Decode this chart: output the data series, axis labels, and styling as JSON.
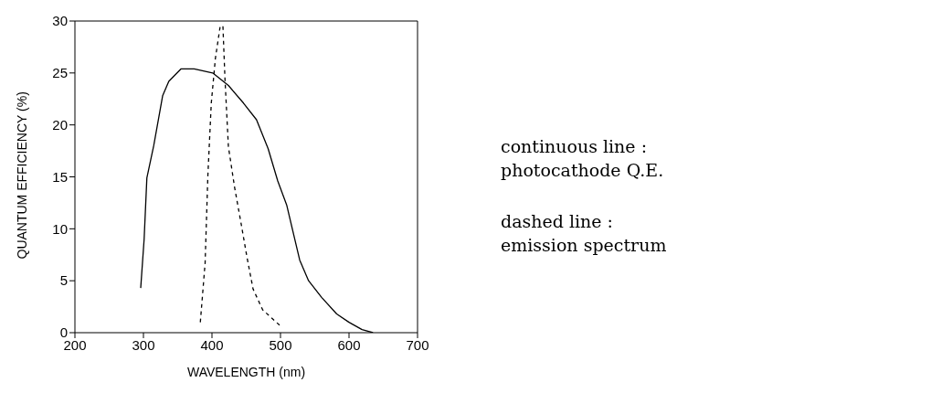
{
  "chart_data": {
    "type": "line",
    "xlabel": "WAVELENGTH (nm)",
    "ylabel": "QUANTUM EFFICIENCY (%)",
    "xlim": [
      200,
      700
    ],
    "xticks": [
      200,
      300,
      400,
      500,
      600,
      700
    ],
    "ylim": [
      0,
      30
    ],
    "yticks": [
      0,
      5,
      10,
      15,
      20,
      25,
      30
    ],
    "grid": false,
    "legend": false,
    "marker": "none",
    "series": [
      {
        "color": "#000000",
        "line_style": "solid",
        "x": [
          296,
          301,
          305,
          315,
          328,
          337,
          355,
          374,
          401,
          424,
          446,
          465,
          482,
          496,
          509,
          528,
          541,
          560,
          582,
          600,
          619,
          635
        ],
        "values": [
          4.3,
          9.0,
          14.9,
          18.0,
          22.8,
          24.2,
          25.4,
          25.4,
          25.0,
          23.8,
          22.1,
          20.5,
          17.7,
          14.6,
          12.3,
          7.0,
          5.0,
          3.4,
          1.8,
          1.0,
          0.3,
          0
        ]
      },
      {
        "color": "#000000",
        "line_style": "dashed",
        "x": [
          383,
          390,
          394,
          399,
          405,
          412,
          416,
          419,
          424,
          433,
          442,
          451,
          460,
          474,
          499
        ],
        "values": [
          1.0,
          6.7,
          15.1,
          22.1,
          26.4,
          29.5,
          29.5,
          24.4,
          17.9,
          14.0,
          10.7,
          7.3,
          4.2,
          2.2,
          0.7
        ]
      }
    ],
    "annotations": [
      "continuous line :",
      "photocathode Q.E.",
      "dashed line :",
      "emission spectrum"
    ]
  }
}
